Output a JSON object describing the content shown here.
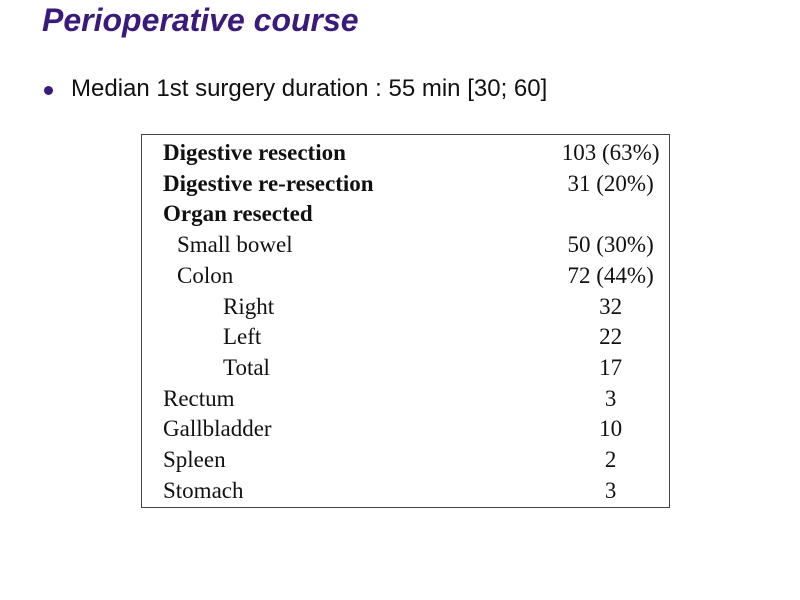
{
  "slide": {
    "title": "Perioperative course",
    "bullets": [
      "Median 1st surgery duration : 55 min [30; 60]"
    ]
  },
  "table": {
    "rows": [
      {
        "label": "Digestive resection",
        "value": "103 (63%)",
        "style": "bold"
      },
      {
        "label": "Digestive re-resection",
        "value": "31 (20%)",
        "style": "bold"
      },
      {
        "label": "Organ resected",
        "value": "",
        "style": "bold"
      },
      {
        "label": "Small bowel",
        "value": "50 (30%)",
        "style": "indent1"
      },
      {
        "label": "Colon",
        "value": "72 (44%)",
        "style": "indent1"
      },
      {
        "label": "Right",
        "value": "32",
        "style": "indent2"
      },
      {
        "label": "Left",
        "value": "22",
        "style": "indent2"
      },
      {
        "label": "Total",
        "value": "17",
        "style": "indent2"
      },
      {
        "label": "Rectum",
        "value": "3",
        "style": "plain"
      },
      {
        "label": "Gallbladder",
        "value": "10",
        "style": "plain"
      },
      {
        "label": "Spleen",
        "value": "2",
        "style": "plain"
      },
      {
        "label": "Stomach",
        "value": "3",
        "style": "plain"
      }
    ]
  },
  "colors": {
    "title": "#3a1a7a",
    "bullet": "#3a1a7a",
    "text": "#111111",
    "table_border": "#444444"
  }
}
